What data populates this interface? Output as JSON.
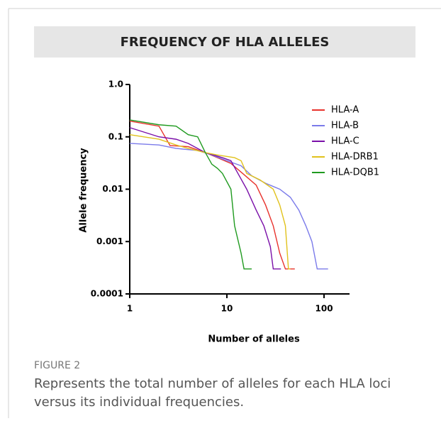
{
  "chart_data": {
    "type": "line",
    "title": "FREQUENCY OF HLA ALLELES",
    "xlabel": "Number of alleles",
    "ylabel": "Allele frequency",
    "figure_label": "FIGURE 2",
    "caption": "Represents the total number of alleles for each HLA loci versus its individual frequencies.",
    "xscale": "log",
    "yscale": "log",
    "xlim": [
      1,
      183
    ],
    "ylim": [
      0.0001,
      1
    ],
    "xticks": [
      1,
      10,
      100
    ],
    "yticks": [
      0.0001,
      0.001,
      0.01,
      0.1,
      {
        "value": 1,
        "label": "1.0"
      }
    ],
    "legend": "upper right",
    "series": [
      {
        "name": "HLA-A",
        "color": "#e8322c",
        "x": [
          1,
          2,
          2.6,
          4,
          6,
          8,
          11,
          15,
          20,
          25,
          30,
          35,
          40,
          50
        ],
        "values": [
          0.2,
          0.16,
          0.068,
          0.065,
          0.05,
          0.04,
          0.031,
          0.019,
          0.012,
          0.005,
          0.002,
          0.0006,
          0.0003,
          0.0003
        ]
      },
      {
        "name": "HLA-B",
        "color": "#7b7bea",
        "x": [
          1,
          2,
          3,
          5,
          7,
          10,
          14,
          18,
          25,
          35,
          45,
          55,
          65,
          75,
          85,
          110
        ],
        "values": [
          0.075,
          0.07,
          0.06,
          0.055,
          0.045,
          0.035,
          0.028,
          0.018,
          0.013,
          0.01,
          0.007,
          0.004,
          0.002,
          0.001,
          0.0003,
          0.0003
        ]
      },
      {
        "name": "HLA-C",
        "color": "#7a0fa8",
        "x": [
          1,
          2,
          3,
          4,
          6,
          9,
          11,
          13,
          16,
          20,
          24,
          28,
          30,
          36
        ],
        "values": [
          0.15,
          0.1,
          0.09,
          0.075,
          0.05,
          0.04,
          0.035,
          0.02,
          0.01,
          0.004,
          0.002,
          0.0008,
          0.0003,
          0.0003
        ]
      },
      {
        "name": "HLA-DRB1",
        "color": "#e1c21c",
        "x": [
          1,
          2,
          3,
          4,
          6,
          8,
          12,
          14,
          16,
          22,
          30,
          35,
          40,
          43,
          45
        ],
        "values": [
          0.11,
          0.09,
          0.07,
          0.06,
          0.05,
          0.045,
          0.04,
          0.035,
          0.02,
          0.015,
          0.01,
          0.005,
          0.002,
          0.0003,
          0.0003
        ]
      },
      {
        "name": "HLA-DQB1",
        "color": "#1f9a1f",
        "x": [
          1,
          2,
          3,
          4,
          5,
          6,
          7,
          8,
          9,
          11,
          12,
          14,
          15,
          18
        ],
        "values": [
          0.21,
          0.17,
          0.16,
          0.11,
          0.1,
          0.05,
          0.03,
          0.025,
          0.02,
          0.01,
          0.002,
          0.0006,
          0.0003,
          0.0003
        ]
      }
    ]
  }
}
